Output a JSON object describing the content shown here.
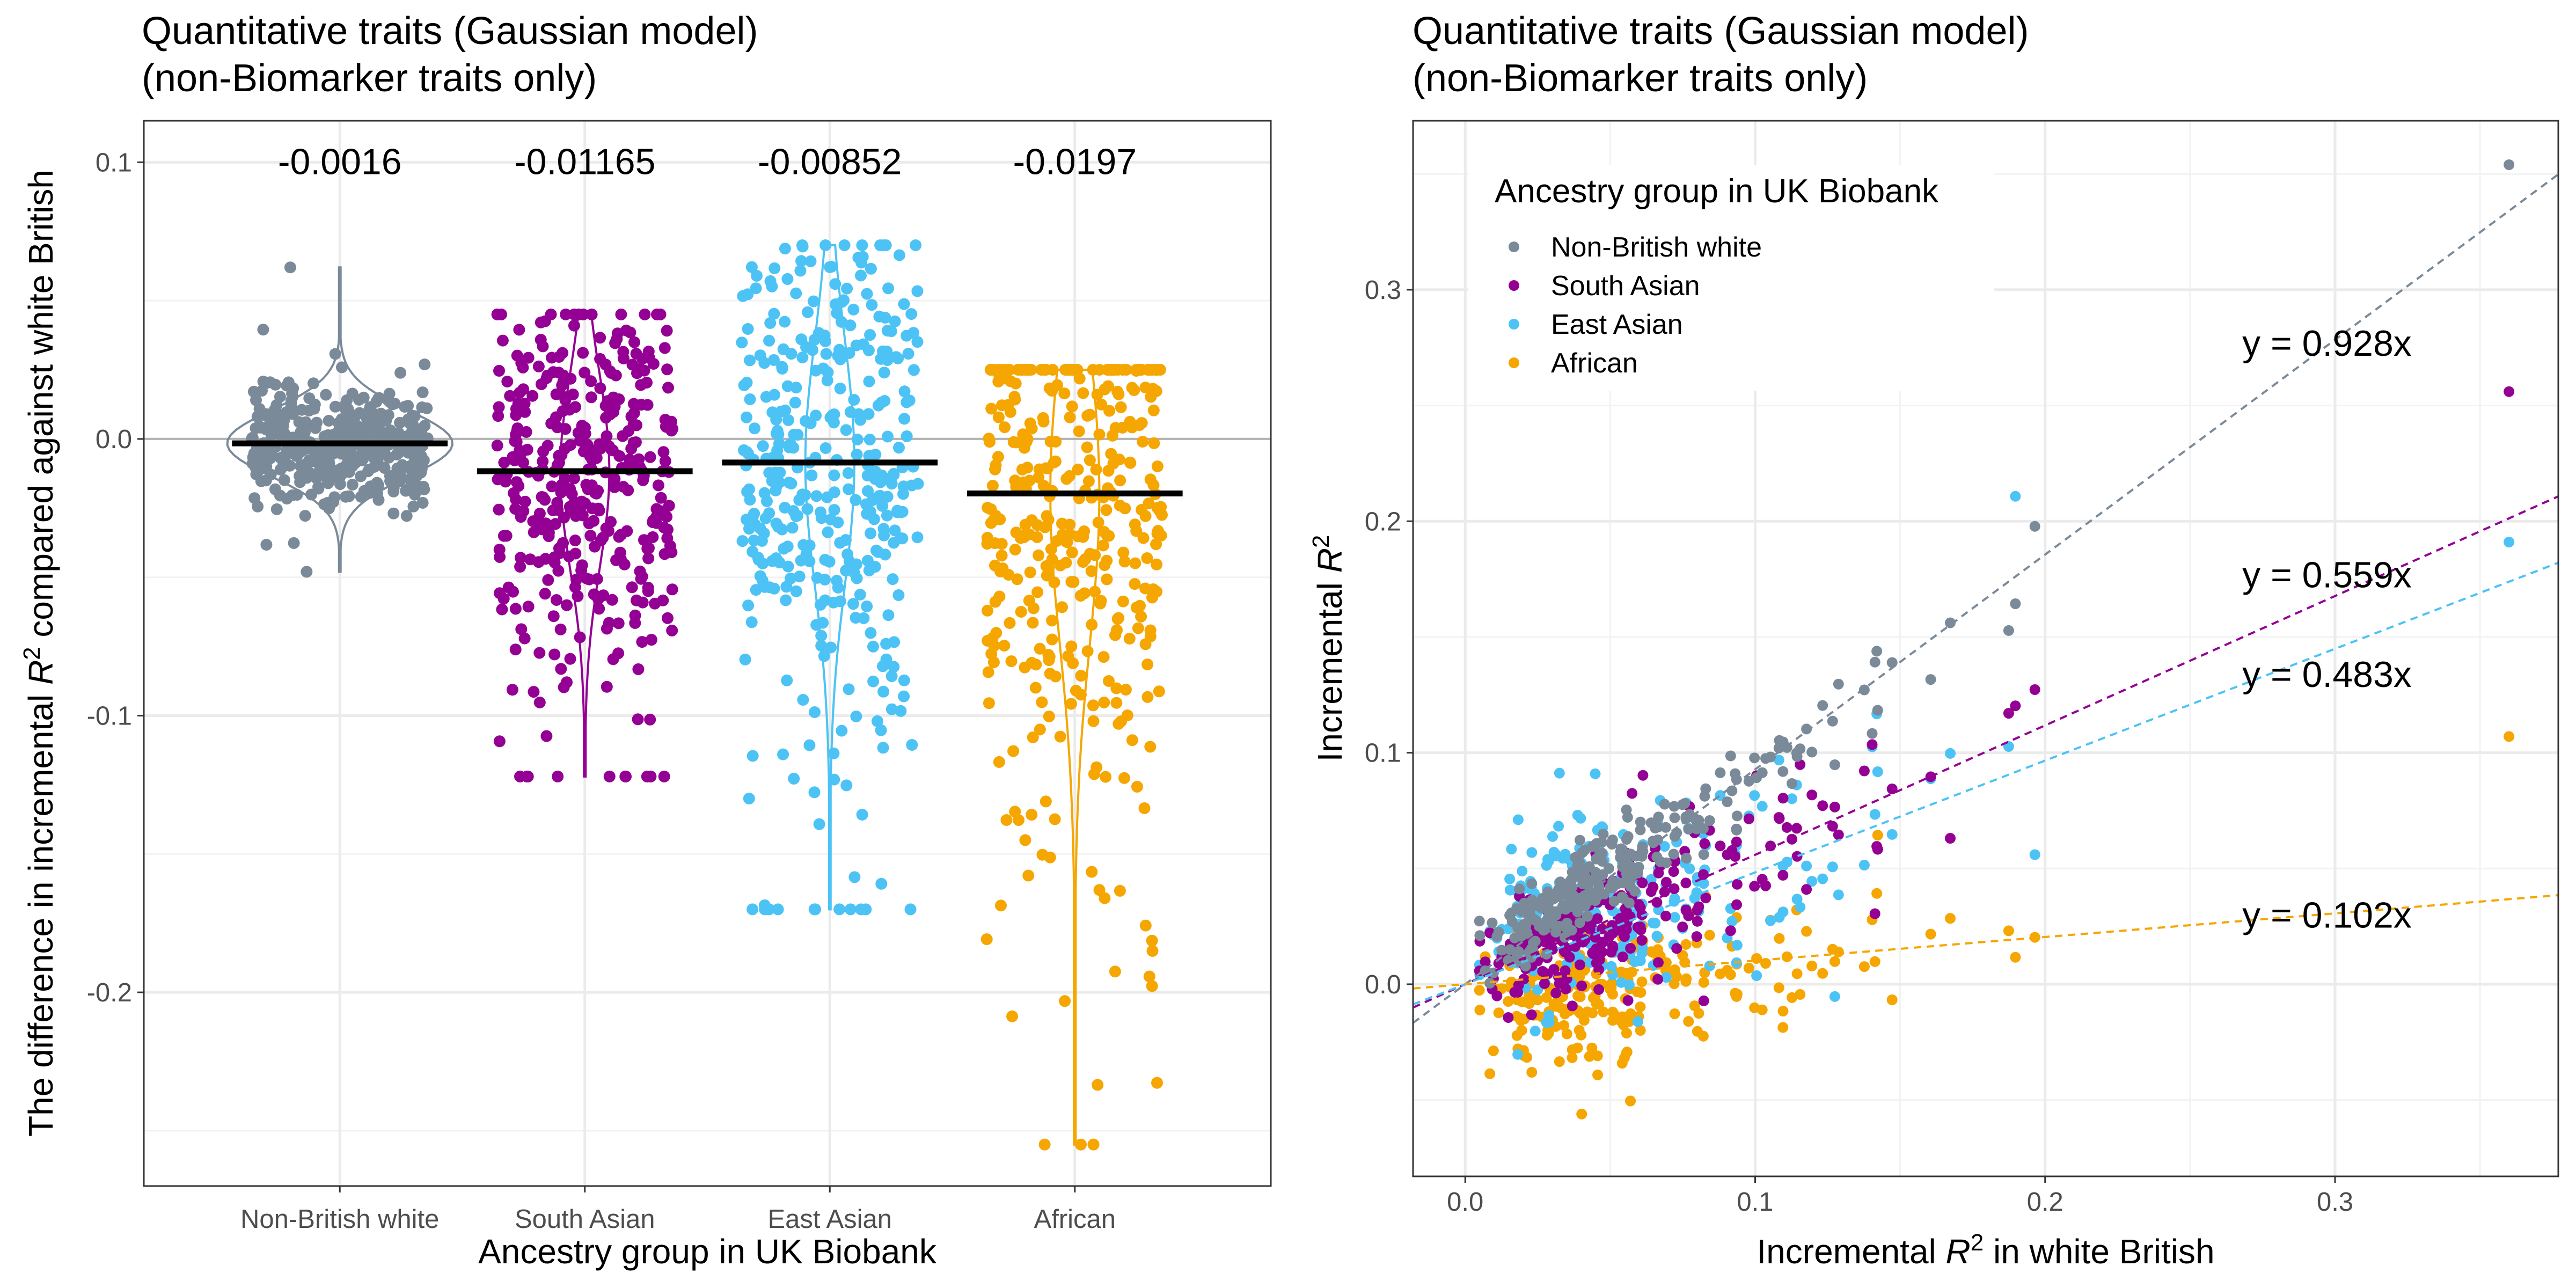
{
  "chart_data": [
    {
      "type": "violin",
      "title_line1": "Quantitative traits (Gaussian model)",
      "title_line2": "(non-Biomarker traits only)",
      "xlabel": "Ancestry group in UK Biobank",
      "ylabel_pre": "The difference in incremental ",
      "ylabel_var": "R",
      "ylabel_sup": "2",
      "ylabel_post": " compared against white British",
      "ylim": [
        -0.27,
        0.115
      ],
      "yticks": [
        "0.1",
        "0.0",
        "-0.1",
        "-0.2"
      ],
      "ytick_values": [
        0.1,
        0.0,
        -0.1,
        -0.2
      ],
      "reference_line": 0.0,
      "categories": [
        "Non-British white",
        "South Asian",
        "East Asian",
        "African"
      ],
      "colors": [
        "#7b8a99",
        "#940094",
        "#4dc3f5",
        "#f5a600"
      ],
      "means": [
        -0.0016,
        -0.01165,
        -0.00852,
        -0.0197
      ],
      "mean_labels": [
        "-0.0016",
        "-0.01165",
        "-0.00852",
        "-0.0197"
      ],
      "ranges": [
        [
          -0.048,
          0.062
        ],
        [
          -0.122,
          0.045
        ],
        [
          -0.17,
          0.07
        ],
        [
          -0.255,
          0.025
        ]
      ],
      "spread": [
        0.012,
        0.035,
        0.045,
        0.055
      ]
    },
    {
      "type": "scatter",
      "title_line1": "Quantitative traits (Gaussian model)",
      "title_line2": "(non-Biomarker traits only)",
      "xlabel_pre": "Incremental ",
      "xlabel_var": "R",
      "xlabel_sup": "2",
      "xlabel_post": " in white British",
      "ylabel_pre": "Incremental ",
      "ylabel_var": "R",
      "ylabel_sup": "2",
      "xlim": [
        -0.018,
        0.377
      ],
      "ylim": [
        -0.083,
        0.373
      ],
      "xticks": [
        "0.0",
        "0.1",
        "0.2",
        "0.3"
      ],
      "xtick_values": [
        0.0,
        0.1,
        0.2,
        0.3
      ],
      "yticks": [
        "0.0",
        "0.1",
        "0.2",
        "0.3"
      ],
      "ytick_values": [
        0.0,
        0.1,
        0.2,
        0.3
      ],
      "legend": {
        "title": "Ancestry group in UK Biobank",
        "placement": "top-left",
        "entries": [
          "Non-British white",
          "South Asian",
          "East Asian",
          "African"
        ]
      },
      "series": [
        {
          "name": "Non-British white",
          "color": "#7b8a99",
          "slope": 0.928,
          "label": "y = 0.928x",
          "noise": 0.012
        },
        {
          "name": "South Asian",
          "color": "#940094",
          "slope": 0.559,
          "label": "y = 0.559x",
          "noise": 0.018
        },
        {
          "name": "East Asian",
          "color": "#4dc3f5",
          "slope": 0.483,
          "label": "y = 0.483x",
          "noise": 0.025
        },
        {
          "name": "African",
          "color": "#f5a600",
          "slope": 0.102,
          "label": "y = 0.102x",
          "noise": 0.014
        }
      ],
      "outlier_x": 0.36,
      "outliers_y": [
        0.354,
        0.256,
        0.191,
        0.107
      ]
    }
  ]
}
